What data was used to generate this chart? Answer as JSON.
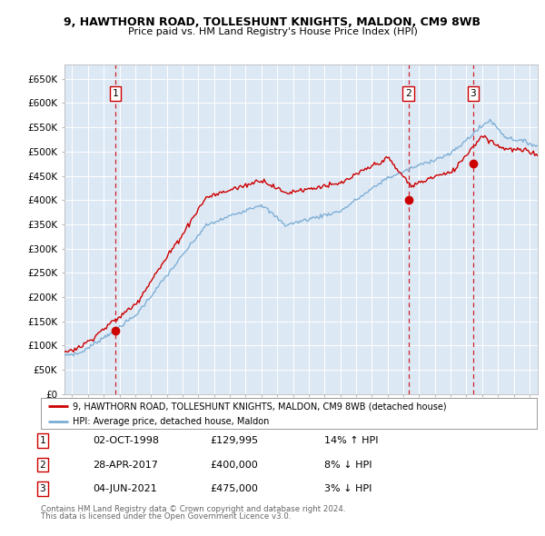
{
  "title1": "9, HAWTHORN ROAD, TOLLESHUNT KNIGHTS, MALDON, CM9 8WB",
  "title2": "Price paid vs. HM Land Registry's House Price Index (HPI)",
  "bg_color": "#dde8f5",
  "ylim": [
    0,
    680000
  ],
  "yticks": [
    0,
    50000,
    100000,
    150000,
    200000,
    250000,
    300000,
    350000,
    400000,
    450000,
    500000,
    550000,
    600000,
    650000
  ],
  "ytick_labels": [
    "£0",
    "£50K",
    "£100K",
    "£150K",
    "£200K",
    "£250K",
    "£300K",
    "£350K",
    "£400K",
    "£450K",
    "£500K",
    "£550K",
    "£600K",
    "£650K"
  ],
  "xlim_start": 1995.5,
  "xlim_end": 2025.5,
  "sale1_x": 1998.75,
  "sale1_y": 129995,
  "sale2_x": 2017.32,
  "sale2_y": 400000,
  "sale3_x": 2021.42,
  "sale3_y": 475000,
  "sale_color": "#cc0000",
  "hpi_color": "#7aadd4",
  "vline_color": "#cc0000",
  "legend_label1": "9, HAWTHORN ROAD, TOLLESHUNT KNIGHTS, MALDON, CM9 8WB (detached house)",
  "legend_label2": "HPI: Average price, detached house, Maldon",
  "table_data": [
    {
      "num": "1",
      "date": "02-OCT-1998",
      "price": "£129,995",
      "hpi": "14% ↑ HPI"
    },
    {
      "num": "2",
      "date": "28-APR-2017",
      "price": "£400,000",
      "hpi": "8% ↓ HPI"
    },
    {
      "num": "3",
      "date": "04-JUN-2021",
      "price": "£475,000",
      "hpi": "3% ↓ HPI"
    }
  ],
  "footnote1": "Contains HM Land Registry data © Crown copyright and database right 2024.",
  "footnote2": "This data is licensed under the Open Government Licence v3.0."
}
